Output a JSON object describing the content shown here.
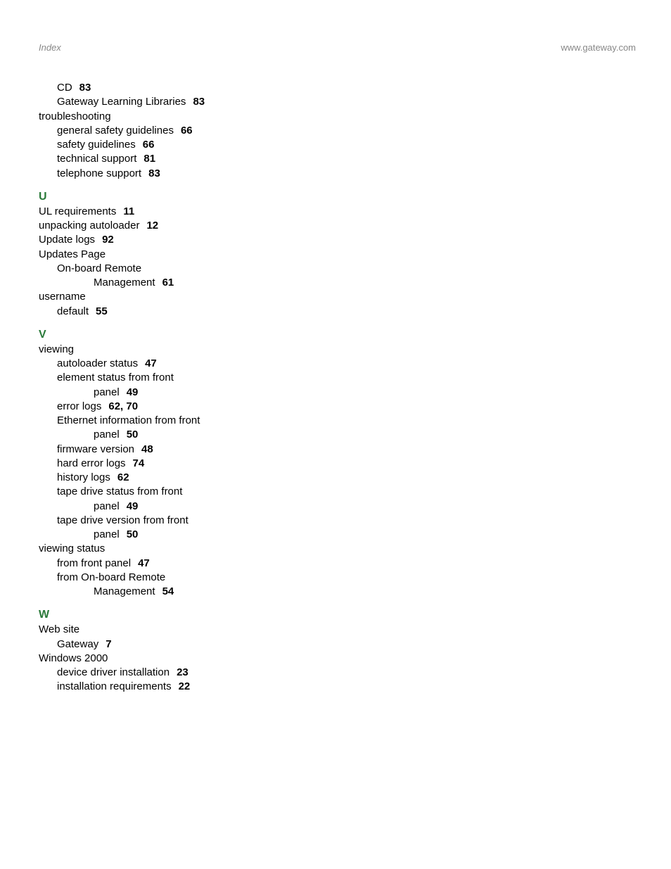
{
  "header": {
    "left": "Index",
    "right": "www.gateway.com"
  },
  "pre_entries": [
    {
      "level": 1,
      "text": "CD",
      "pages": "83"
    },
    {
      "level": 1,
      "text": "Gateway Learning Libraries",
      "pages": "83"
    },
    {
      "level": 0,
      "text": "troubleshooting",
      "pages": ""
    },
    {
      "level": 1,
      "text": "general safety guidelines",
      "pages": "66"
    },
    {
      "level": 1,
      "text": "safety guidelines",
      "pages": "66"
    },
    {
      "level": 1,
      "text": "technical support",
      "pages": "81"
    },
    {
      "level": 1,
      "text": "telephone support",
      "pages": "83"
    }
  ],
  "sections": [
    {
      "letter": "U",
      "entries": [
        {
          "level": 0,
          "text": "UL requirements",
          "pages": "11"
        },
        {
          "level": 0,
          "text": "unpacking autoloader",
          "pages": "12"
        },
        {
          "level": 0,
          "text": "Update logs",
          "pages": "92"
        },
        {
          "level": 0,
          "text": "Updates Page",
          "pages": ""
        },
        {
          "level": 1,
          "text": "On-board Remote",
          "pages": ""
        },
        {
          "level": 2,
          "text": "Management",
          "pages": "61"
        },
        {
          "level": 0,
          "text": "username",
          "pages": ""
        },
        {
          "level": 1,
          "text": "default",
          "pages": "55"
        }
      ]
    },
    {
      "letter": "V",
      "entries": [
        {
          "level": 0,
          "text": "viewing",
          "pages": ""
        },
        {
          "level": 1,
          "text": "autoloader status",
          "pages": "47"
        },
        {
          "level": 1,
          "text": "element status from front",
          "pages": ""
        },
        {
          "level": 2,
          "text": "panel",
          "pages": "49"
        },
        {
          "level": 1,
          "text": "error logs",
          "pages": "62, 70"
        },
        {
          "level": 1,
          "text": "Ethernet information from front",
          "pages": ""
        },
        {
          "level": 2,
          "text": "panel",
          "pages": "50"
        },
        {
          "level": 1,
          "text": "firmware version",
          "pages": "48"
        },
        {
          "level": 1,
          "text": "hard error logs",
          "pages": "74"
        },
        {
          "level": 1,
          "text": "history logs",
          "pages": "62"
        },
        {
          "level": 1,
          "text": "tape drive status from front",
          "pages": ""
        },
        {
          "level": 2,
          "text": "panel",
          "pages": "49"
        },
        {
          "level": 1,
          "text": "tape drive version from front",
          "pages": ""
        },
        {
          "level": 2,
          "text": "panel",
          "pages": "50"
        },
        {
          "level": 0,
          "text": "viewing status",
          "pages": ""
        },
        {
          "level": 1,
          "text": "from front panel",
          "pages": "47"
        },
        {
          "level": 1,
          "text": "from On-board Remote",
          "pages": ""
        },
        {
          "level": 2,
          "text": "Management",
          "pages": "54"
        }
      ]
    },
    {
      "letter": "W",
      "entries": [
        {
          "level": 0,
          "text": "Web site",
          "pages": ""
        },
        {
          "level": 1,
          "text": "Gateway",
          "pages": "7"
        },
        {
          "level": 0,
          "text": "Windows 2000",
          "pages": ""
        },
        {
          "level": 1,
          "text": "device driver installation",
          "pages": "23"
        },
        {
          "level": 1,
          "text": "installation requirements",
          "pages": "22"
        }
      ]
    }
  ]
}
